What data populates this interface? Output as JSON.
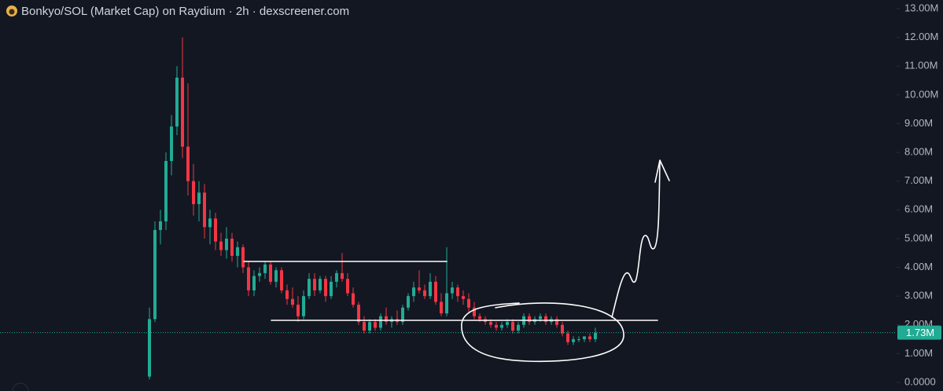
{
  "chart_data": {
    "type": "candlestick",
    "title": "Bonkyo/SOL (Market Cap) on Raydium · 2h · dexscreener.com",
    "open": [
      0.2,
      2.2,
      5.3,
      5.6,
      7.7,
      8.9,
      10.6,
      8.2,
      7.0,
      6.2,
      6.6,
      5.4,
      5.7,
      4.9,
      4.6,
      5.0,
      4.4,
      4.7,
      4.0,
      3.2,
      3.7,
      3.8,
      4.1,
      3.5,
      3.9,
      3.2,
      2.9,
      2.7,
      2.3,
      3.0,
      3.6,
      3.2,
      3.6,
      3.0,
      3.5,
      3.8,
      3.6,
      3.1,
      2.7,
      2.1,
      1.8,
      2.1,
      1.9,
      2.3,
      2.1,
      2.2,
      2.1,
      2.6,
      3.0,
      3.3,
      3.2,
      3.0,
      3.5,
      2.8,
      2.4,
      3.1,
      3.3,
      3.0,
      2.9,
      2.6,
      2.3,
      2.2,
      2.1,
      2.0,
      1.9,
      2.0,
      2.1,
      1.8,
      2.0,
      2.3,
      2.1,
      2.2,
      2.3,
      2.1,
      2.2,
      2.0,
      1.7,
      1.4,
      1.5,
      1.5,
      1.6,
      1.5
    ],
    "high": [
      2.6,
      5.6,
      6.0,
      8.0,
      9.3,
      11.0,
      12.0,
      10.4,
      7.6,
      7.0,
      6.9,
      6.0,
      5.9,
      5.2,
      5.4,
      5.2,
      4.9,
      4.8,
      4.2,
      3.9,
      4.0,
      4.2,
      4.2,
      4.0,
      4.0,
      3.4,
      3.3,
      3.0,
      3.2,
      3.8,
      3.8,
      3.7,
      3.7,
      3.7,
      3.9,
      4.5,
      3.8,
      3.3,
      2.8,
      2.3,
      2.2,
      2.2,
      2.4,
      2.6,
      2.3,
      2.5,
      2.7,
      3.1,
      3.5,
      3.9,
      3.4,
      3.8,
      3.7,
      3.1,
      4.7,
      3.5,
      3.4,
      3.2,
      3.1,
      2.8,
      2.4,
      2.3,
      2.2,
      2.1,
      2.1,
      2.2,
      2.2,
      2.1,
      2.4,
      2.4,
      2.3,
      2.4,
      2.4,
      2.3,
      2.3,
      2.1,
      1.8,
      1.6,
      1.6,
      1.6,
      1.7,
      1.9
    ],
    "low": [
      0.1,
      2.1,
      4.8,
      5.3,
      7.2,
      8.6,
      7.8,
      6.5,
      5.8,
      5.6,
      5.0,
      4.8,
      4.6,
      4.4,
      4.3,
      4.2,
      4.0,
      3.8,
      3.0,
      3.0,
      3.5,
      3.6,
      3.4,
      3.3,
      3.1,
      2.7,
      2.6,
      2.1,
      2.2,
      2.9,
      3.0,
      3.1,
      2.8,
      2.9,
      3.3,
      3.5,
      3.0,
      2.6,
      2.0,
      1.7,
      1.7,
      1.8,
      1.8,
      2.0,
      1.9,
      2.0,
      2.0,
      2.5,
      2.8,
      3.1,
      2.9,
      2.9,
      2.7,
      2.3,
      2.3,
      2.9,
      2.8,
      2.7,
      2.4,
      2.2,
      2.1,
      2.0,
      1.9,
      1.8,
      1.8,
      1.9,
      1.7,
      1.7,
      1.9,
      2.0,
      2.0,
      2.1,
      2.0,
      2.0,
      1.9,
      1.6,
      1.3,
      1.3,
      1.4,
      1.4,
      1.4,
      1.4
    ],
    "close": [
      2.2,
      5.3,
      5.6,
      7.7,
      8.9,
      10.6,
      8.2,
      7.0,
      6.2,
      6.6,
      5.4,
      5.7,
      4.9,
      4.6,
      5.0,
      4.4,
      4.7,
      4.0,
      3.2,
      3.7,
      3.8,
      4.1,
      3.5,
      3.9,
      3.2,
      2.9,
      2.7,
      2.3,
      3.0,
      3.6,
      3.2,
      3.6,
      3.0,
      3.5,
      3.8,
      3.6,
      3.1,
      2.7,
      2.1,
      1.8,
      2.1,
      1.9,
      2.3,
      2.1,
      2.2,
      2.1,
      2.6,
      3.0,
      3.3,
      3.2,
      3.0,
      3.5,
      2.8,
      2.4,
      3.1,
      3.3,
      3.0,
      2.9,
      2.6,
      2.3,
      2.2,
      2.1,
      2.0,
      1.9,
      2.0,
      2.1,
      1.8,
      2.0,
      2.3,
      2.1,
      2.2,
      2.3,
      2.1,
      2.2,
      2.0,
      1.7,
      1.4,
      1.5,
      1.5,
      1.6,
      1.5,
      1.73
    ],
    "up_color": "#22ab94",
    "down_color": "#f23645",
    "ylim": [
      0,
      13
    ],
    "yticks": [
      {
        "value": 0,
        "label": "0.0000"
      },
      {
        "value": 1,
        "label": "1.00M"
      },
      {
        "value": 2,
        "label": "2.00M"
      },
      {
        "value": 3,
        "label": "3.00M"
      },
      {
        "value": 4,
        "label": "4.00M"
      },
      {
        "value": 5,
        "label": "5.00M"
      },
      {
        "value": 6,
        "label": "6.00M"
      },
      {
        "value": 7,
        "label": "7.00M"
      },
      {
        "value": 8,
        "label": "8.00M"
      },
      {
        "value": 9,
        "label": "9.00M"
      },
      {
        "value": 10,
        "label": "10.00M"
      },
      {
        "value": 11,
        "label": "11.00M"
      },
      {
        "value": 12,
        "label": "12.00M"
      },
      {
        "value": 13,
        "label": "13.00M"
      }
    ],
    "last_price": {
      "value": 1.73,
      "label": "1.73M"
    }
  }
}
